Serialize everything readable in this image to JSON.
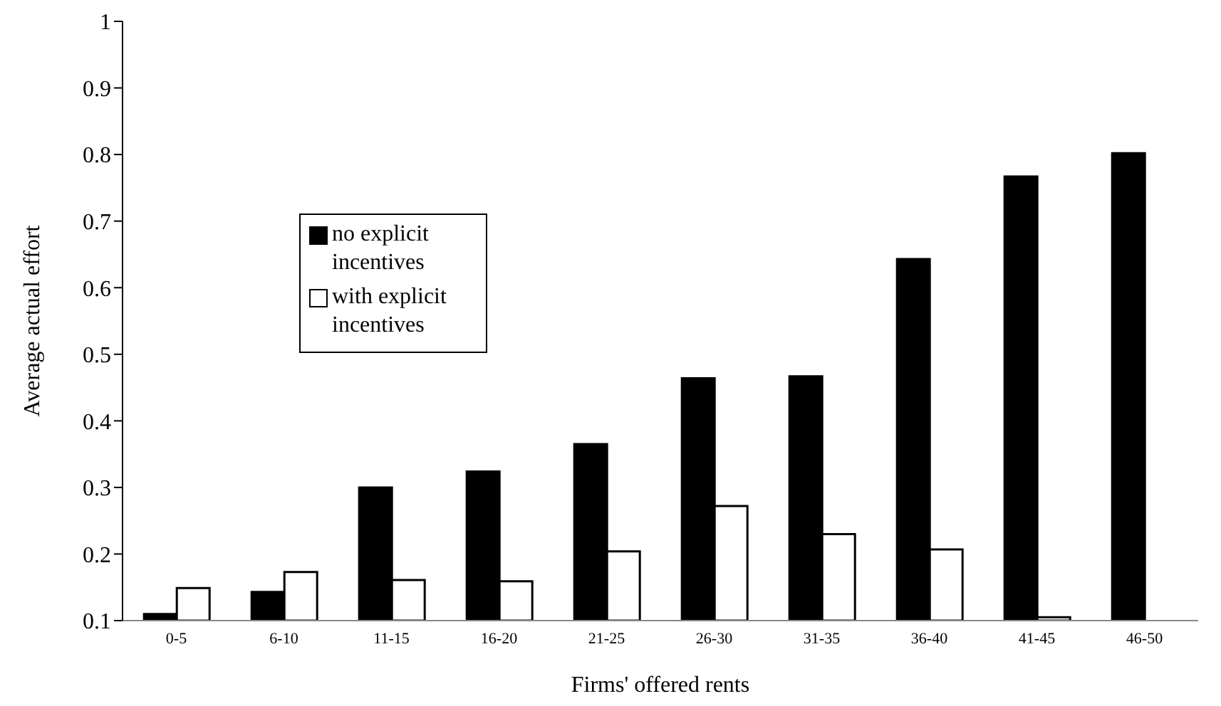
{
  "chart_data": {
    "type": "bar",
    "xlabel": "Firms' offered rents",
    "ylabel": "Average actual effort",
    "categories": [
      "0-5",
      "6-10",
      "11-15",
      "16-20",
      "21-25",
      "26-30",
      "31-35",
      "36-40",
      "41-45",
      "46-50"
    ],
    "series": [
      {
        "name": "no explicit incentives",
        "color": "#000000",
        "values": [
          0.11,
          0.143,
          0.3,
          0.324,
          0.365,
          0.464,
          0.467,
          0.643,
          0.767,
          0.802
        ]
      },
      {
        "name": "with explicit incentives",
        "color": "#ffffff",
        "values": [
          0.149,
          0.173,
          0.161,
          0.159,
          0.204,
          0.272,
          0.23,
          0.207,
          0.105,
          null
        ]
      }
    ],
    "ylim": [
      0.1,
      1
    ],
    "yticks": [
      0.1,
      0.2,
      0.3,
      0.4,
      0.5,
      0.6,
      0.7,
      0.8,
      0.9,
      1
    ],
    "grid": false,
    "legend": "left"
  }
}
